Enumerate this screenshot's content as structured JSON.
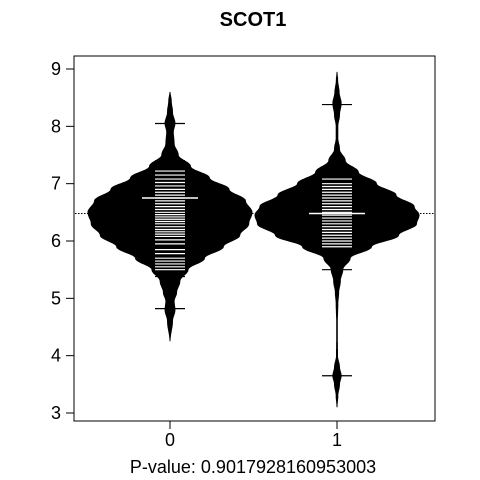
{
  "chart_data": {
    "type": "beanplot",
    "title": "SCOT1",
    "xlabel": "P-value: 0.9017928160953003",
    "ylabel": "",
    "ylim": [
      2.85,
      9.15
    ],
    "y_ticks": [
      3,
      4,
      5,
      6,
      7,
      8,
      9
    ],
    "categories": [
      "0",
      "1"
    ],
    "overall_mean": 6.48,
    "grid": false,
    "beans": [
      {
        "category": "0",
        "mean": 6.75,
        "density": [
          [
            4.25,
            0.0
          ],
          [
            4.6,
            0.03
          ],
          [
            4.8,
            0.06
          ],
          [
            4.95,
            0.05
          ],
          [
            5.1,
            0.08
          ],
          [
            5.3,
            0.12
          ],
          [
            5.5,
            0.22
          ],
          [
            5.7,
            0.42
          ],
          [
            5.9,
            0.65
          ],
          [
            6.1,
            0.85
          ],
          [
            6.3,
            0.96
          ],
          [
            6.5,
            1.0
          ],
          [
            6.7,
            0.92
          ],
          [
            6.9,
            0.72
          ],
          [
            7.1,
            0.48
          ],
          [
            7.3,
            0.25
          ],
          [
            7.5,
            0.1
          ],
          [
            7.7,
            0.05
          ],
          [
            7.9,
            0.04
          ],
          [
            8.05,
            0.06
          ],
          [
            8.25,
            0.03
          ],
          [
            8.45,
            0.015
          ],
          [
            8.6,
            0.0
          ]
        ],
        "points": [
          4.82,
          5.38,
          5.42,
          5.46,
          5.5,
          5.55,
          5.6,
          5.65,
          5.7,
          5.78,
          5.85,
          5.95,
          6.02,
          6.08,
          6.12,
          6.16,
          6.2,
          6.25,
          6.3,
          6.34,
          6.38,
          6.42,
          6.46,
          6.5,
          6.55,
          6.6,
          6.65,
          6.7,
          6.75,
          6.8,
          6.85,
          6.9,
          6.96,
          7.02,
          7.08,
          7.15,
          7.22,
          7.4,
          8.05
        ]
      },
      {
        "category": "1",
        "mean": 6.48,
        "density": [
          [
            3.1,
            0.0
          ],
          [
            3.3,
            0.01
          ],
          [
            3.5,
            0.03
          ],
          [
            3.65,
            0.05
          ],
          [
            3.8,
            0.03
          ],
          [
            4.0,
            0.006
          ],
          [
            4.3,
            0.004
          ],
          [
            4.6,
            0.004
          ],
          [
            4.9,
            0.01
          ],
          [
            5.1,
            0.02
          ],
          [
            5.3,
            0.04
          ],
          [
            5.5,
            0.07
          ],
          [
            5.7,
            0.16
          ],
          [
            5.9,
            0.42
          ],
          [
            6.1,
            0.75
          ],
          [
            6.3,
            0.97
          ],
          [
            6.45,
            1.0
          ],
          [
            6.6,
            0.94
          ],
          [
            6.8,
            0.72
          ],
          [
            7.0,
            0.48
          ],
          [
            7.2,
            0.26
          ],
          [
            7.4,
            0.1
          ],
          [
            7.6,
            0.03
          ],
          [
            7.8,
            0.01
          ],
          [
            8.0,
            0.01
          ],
          [
            8.2,
            0.03
          ],
          [
            8.4,
            0.05
          ],
          [
            8.6,
            0.025
          ],
          [
            8.8,
            0.008
          ],
          [
            8.95,
            0.0
          ]
        ],
        "points": [
          3.65,
          5.5,
          5.9,
          5.95,
          6.0,
          6.05,
          6.1,
          6.15,
          6.2,
          6.25,
          6.3,
          6.35,
          6.4,
          6.45,
          6.5,
          6.55,
          6.6,
          6.65,
          6.7,
          6.75,
          6.8,
          6.85,
          6.9,
          6.95,
          7.0,
          7.08,
          8.38
        ]
      }
    ]
  }
}
